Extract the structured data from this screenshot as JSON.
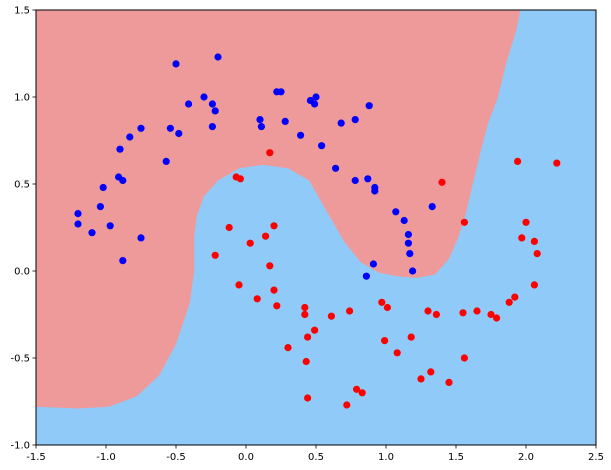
{
  "chart_data": {
    "type": "scatter",
    "title": "",
    "xlabel": "",
    "ylabel": "",
    "xlim": [
      -1.5,
      2.5
    ],
    "ylim": [
      -1.0,
      1.5
    ],
    "grid": false,
    "legend": "none",
    "xticks": [
      "-1.5",
      "-1.0",
      "-0.5",
      "0.0",
      "0.5",
      "1.0",
      "1.5",
      "2.0",
      "2.5"
    ],
    "yticks": [
      "-1.0",
      "-0.5",
      "0.0",
      "0.5",
      "1.0",
      "1.5"
    ],
    "regions": [
      {
        "label": "class 0 region",
        "color": "#ef9a9a"
      },
      {
        "label": "class 1 region",
        "color": "#90caf9"
      }
    ],
    "series": [
      {
        "color": "#0000ff",
        "points": [
          [
            -1.2,
            0.33
          ],
          [
            -1.2,
            0.27
          ],
          [
            -1.1,
            0.22
          ],
          [
            -1.04,
            0.37
          ],
          [
            -1.02,
            0.48
          ],
          [
            -0.97,
            0.26
          ],
          [
            -0.91,
            0.54
          ],
          [
            -0.9,
            0.7
          ],
          [
            -0.88,
            0.52
          ],
          [
            -0.88,
            0.06
          ],
          [
            -0.83,
            0.77
          ],
          [
            -0.75,
            0.82
          ],
          [
            -0.75,
            0.19
          ],
          [
            -0.57,
            0.63
          ],
          [
            -0.54,
            0.82
          ],
          [
            -0.5,
            1.19
          ],
          [
            -0.48,
            0.79
          ],
          [
            -0.41,
            0.96
          ],
          [
            -0.3,
            1.0
          ],
          [
            -0.24,
            0.96
          ],
          [
            -0.24,
            0.83
          ],
          [
            -0.22,
            0.92
          ],
          [
            -0.2,
            1.23
          ],
          [
            0.1,
            0.87
          ],
          [
            0.11,
            0.83
          ],
          [
            0.22,
            1.03
          ],
          [
            0.25,
            1.03
          ],
          [
            0.28,
            0.86
          ],
          [
            0.39,
            0.78
          ],
          [
            0.46,
            0.98
          ],
          [
            0.49,
            0.96
          ],
          [
            0.5,
            1.0
          ],
          [
            0.54,
            0.72
          ],
          [
            0.64,
            0.59
          ],
          [
            0.68,
            0.85
          ],
          [
            0.78,
            0.52
          ],
          [
            0.78,
            0.87
          ],
          [
            0.86,
            -0.03
          ],
          [
            0.87,
            0.53
          ],
          [
            0.88,
            0.95
          ],
          [
            0.91,
            0.04
          ],
          [
            0.92,
            0.48
          ],
          [
            0.92,
            0.46
          ],
          [
            1.07,
            0.34
          ],
          [
            1.13,
            0.29
          ],
          [
            1.16,
            0.21
          ],
          [
            1.16,
            0.16
          ],
          [
            1.17,
            0.1
          ],
          [
            1.19,
            0.0
          ],
          [
            1.33,
            0.37
          ]
        ]
      },
      {
        "color": "#ff0000",
        "points": [
          [
            -0.22,
            0.09
          ],
          [
            -0.12,
            0.25
          ],
          [
            -0.07,
            0.54
          ],
          [
            -0.05,
            -0.08
          ],
          [
            -0.04,
            0.53
          ],
          [
            0.03,
            0.16
          ],
          [
            0.08,
            -0.16
          ],
          [
            0.14,
            0.2
          ],
          [
            0.17,
            0.68
          ],
          [
            0.17,
            0.03
          ],
          [
            0.2,
            -0.11
          ],
          [
            0.2,
            0.26
          ],
          [
            0.22,
            -0.2
          ],
          [
            0.3,
            -0.44
          ],
          [
            0.42,
            -0.25
          ],
          [
            0.42,
            -0.21
          ],
          [
            0.43,
            -0.52
          ],
          [
            0.44,
            -0.38
          ],
          [
            0.44,
            -0.73
          ],
          [
            0.49,
            -0.34
          ],
          [
            0.61,
            -0.26
          ],
          [
            0.72,
            -0.77
          ],
          [
            0.74,
            -0.23
          ],
          [
            0.79,
            -0.68
          ],
          [
            0.83,
            -0.7
          ],
          [
            0.97,
            -0.18
          ],
          [
            0.99,
            -0.4
          ],
          [
            1.01,
            -0.21
          ],
          [
            1.08,
            -0.47
          ],
          [
            1.18,
            -0.38
          ],
          [
            1.25,
            -0.62
          ],
          [
            1.3,
            -0.23
          ],
          [
            1.32,
            -0.58
          ],
          [
            1.36,
            -0.25
          ],
          [
            1.4,
            0.51
          ],
          [
            1.45,
            -0.64
          ],
          [
            1.55,
            -0.24
          ],
          [
            1.56,
            0.28
          ],
          [
            1.56,
            -0.5
          ],
          [
            1.65,
            -0.23
          ],
          [
            1.75,
            -0.25
          ],
          [
            1.79,
            -0.27
          ],
          [
            1.88,
            -0.18
          ],
          [
            1.92,
            -0.15
          ],
          [
            1.94,
            0.63
          ],
          [
            1.97,
            0.19
          ],
          [
            2.0,
            0.28
          ],
          [
            2.06,
            -0.08
          ],
          [
            2.06,
            0.17
          ],
          [
            2.08,
            0.1
          ],
          [
            2.22,
            0.62
          ]
        ]
      }
    ]
  }
}
